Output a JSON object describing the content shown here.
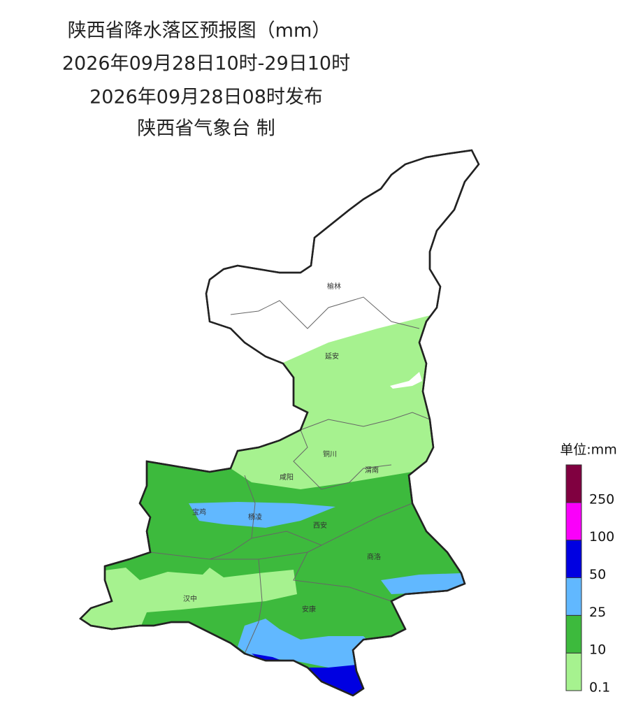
{
  "header": {
    "title": "陕西省降水落区预报图（mm）",
    "period": "2026年09月28日10时-29日10时",
    "issued": "2026年09月28日08时发布",
    "producer": "陕西省气象台 制"
  },
  "cities": [
    {
      "name": "榆林"
    },
    {
      "name": "延安"
    },
    {
      "name": "铜川"
    },
    {
      "name": "咸阳"
    },
    {
      "name": "渭南"
    },
    {
      "name": "宝鸡"
    },
    {
      "name": "杨凌"
    },
    {
      "name": "西安"
    },
    {
      "name": "商洛"
    },
    {
      "name": "汉中"
    },
    {
      "name": "安康"
    }
  ],
  "legend": {
    "title": "单位:mm",
    "levels": [
      {
        "value": 0.1,
        "color": "#a6f28f"
      },
      {
        "value": 10,
        "color": "#3dba3d"
      },
      {
        "value": 25,
        "color": "#61b8ff"
      },
      {
        "value": 50,
        "color": "#0000e1"
      },
      {
        "value": 100,
        "color": "#fa00fa"
      },
      {
        "value": 250,
        "color": "#800040"
      }
    ]
  }
}
